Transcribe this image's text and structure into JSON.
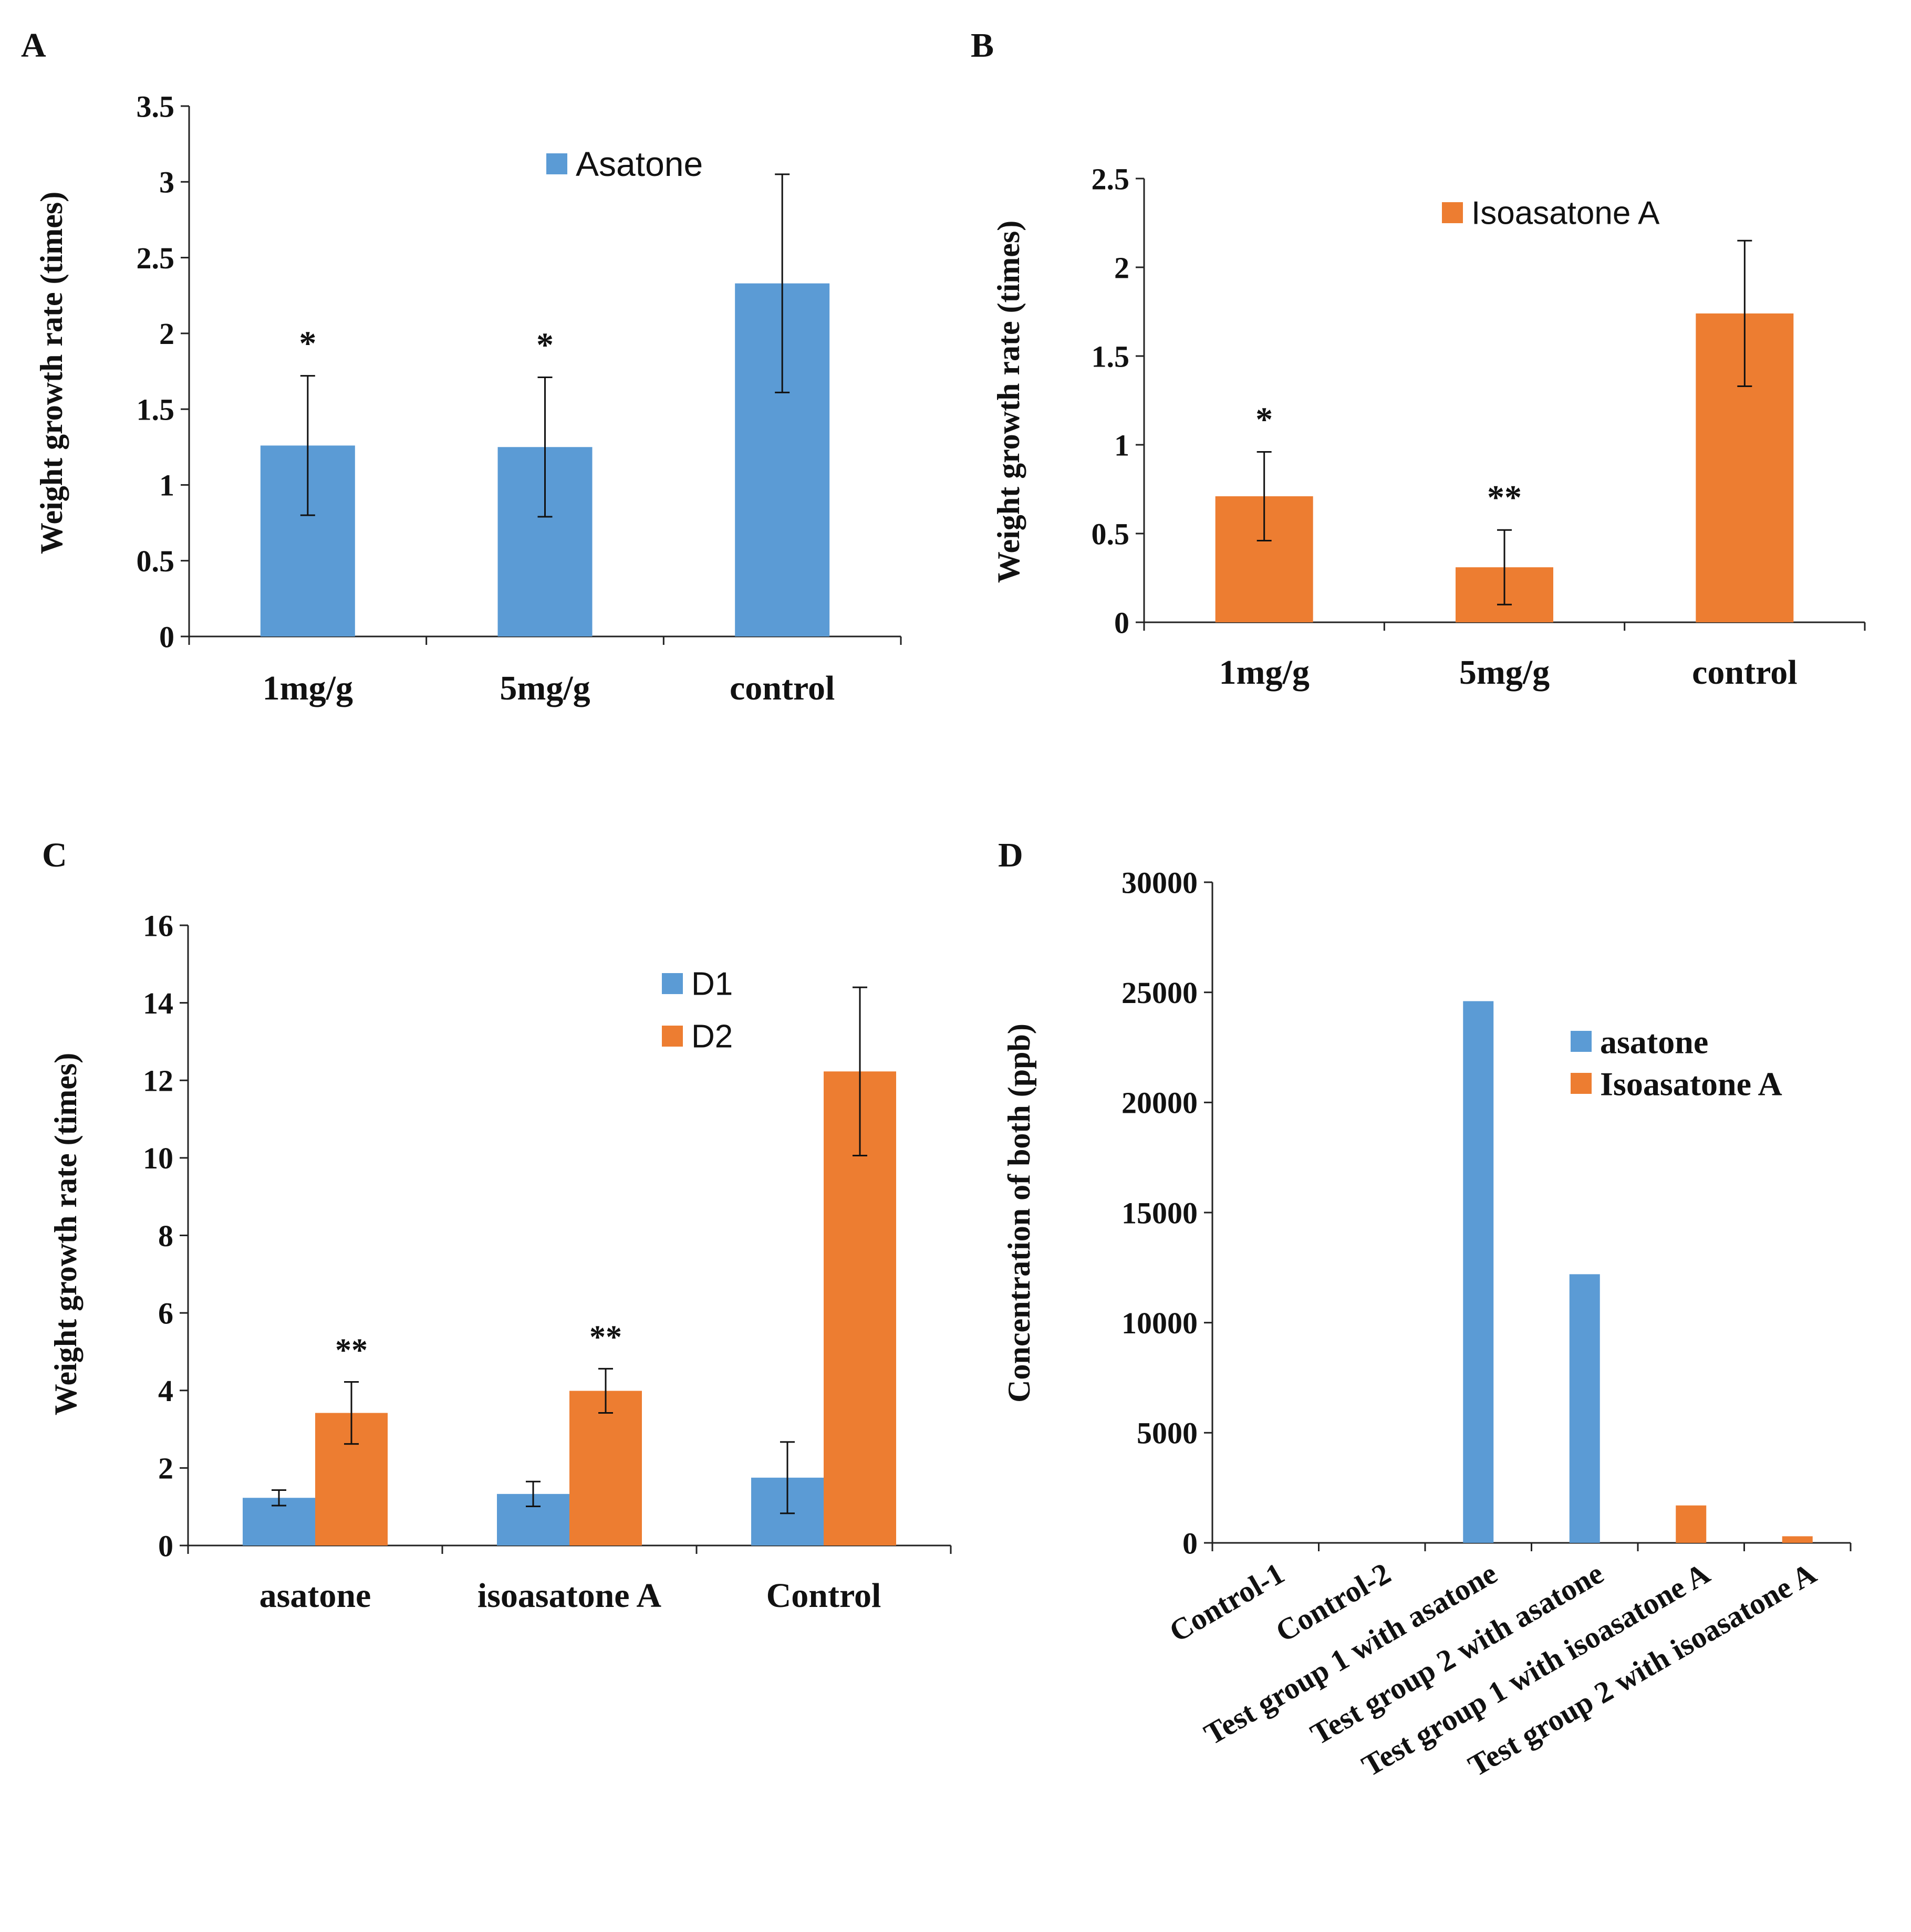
{
  "colors": {
    "blue": "#5B9BD5",
    "orange": "#ED7D31"
  },
  "chart_data": [
    {
      "type": "bar",
      "panel": "A",
      "title": "",
      "xlabel": "",
      "ylabel": "Weight growth rate (times)",
      "categories": [
        "1mg/g",
        "5mg/g",
        "control"
      ],
      "series": [
        {
          "name": "Asatone",
          "values": [
            1.26,
            1.25,
            2.33
          ],
          "errors": [
            0.46,
            0.46,
            0.72
          ],
          "color": "#5B9BD5"
        }
      ],
      "annotations": [
        "*",
        "*",
        ""
      ],
      "ylim": [
        0,
        3.5
      ],
      "yticks": [
        "0",
        "0.5",
        "1",
        "1.5",
        "2",
        "2.5",
        "3",
        "3.5"
      ],
      "legend": "top-center"
    },
    {
      "type": "bar",
      "panel": "B",
      "title": "",
      "xlabel": "",
      "ylabel": "Weight growth rate (times)",
      "categories": [
        "1mg/g",
        "5mg/g",
        "control"
      ],
      "series": [
        {
          "name": "Isoasatone A",
          "values": [
            0.71,
            0.31,
            1.74
          ],
          "errors": [
            0.25,
            0.21,
            0.41
          ],
          "color": "#ED7D31"
        }
      ],
      "annotations": [
        "*",
        "**",
        ""
      ],
      "ylim": [
        0,
        2.5
      ],
      "yticks": [
        "0",
        "0.5",
        "1",
        "1.5",
        "2",
        "2.5"
      ],
      "legend": "top-center"
    },
    {
      "type": "bar",
      "panel": "C",
      "title": "",
      "xlabel": "",
      "ylabel": "Weight growth rate (times)",
      "categories": [
        "asatone",
        "isoasatone A",
        "Control"
      ],
      "series": [
        {
          "name": "D1",
          "values": [
            1.23,
            1.33,
            1.75
          ],
          "errors": [
            0.2,
            0.32,
            0.92
          ],
          "color": "#5B9BD5"
        },
        {
          "name": "D2",
          "values": [
            3.42,
            3.99,
            12.23
          ],
          "errors": [
            0.8,
            0.57,
            2.17
          ],
          "color": "#ED7D31"
        }
      ],
      "annotations": [
        "**",
        "**",
        ""
      ],
      "ylim": [
        0,
        16
      ],
      "yticks": [
        "0",
        "2",
        "4",
        "6",
        "8",
        "10",
        "12",
        "14",
        "16"
      ],
      "legend": "top-right"
    },
    {
      "type": "bar",
      "panel": "D",
      "title": "",
      "xlabel": "",
      "ylabel": "Concentration of both (ppb)",
      "categories": [
        "Control-1",
        "Control-2",
        "Test group 1 with asatone",
        "Test group 2 with asatone",
        "Test group 1 with isoasatone A",
        "Test group 2 with isoasatone A"
      ],
      "series": [
        {
          "name": "asatone",
          "values": [
            0,
            0,
            24600,
            12200,
            0,
            0
          ],
          "color": "#5B9BD5"
        },
        {
          "name": "Isoasatone A",
          "values": [
            0,
            0,
            0,
            0,
            1700,
            300
          ],
          "color": "#ED7D31"
        }
      ],
      "ylim": [
        0,
        30000
      ],
      "yticks": [
        "0",
        "5000",
        "10000",
        "15000",
        "20000",
        "25000",
        "30000"
      ],
      "legend": "top-right"
    }
  ]
}
